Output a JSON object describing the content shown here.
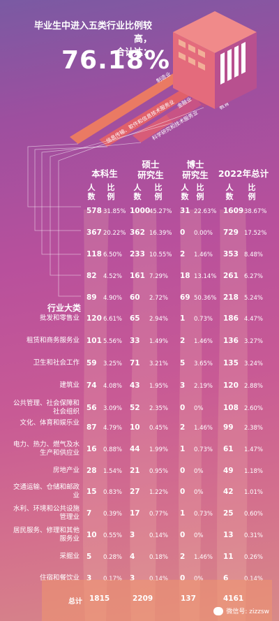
{
  "headline": {
    "line1": "毕业生中进入五类行业比例较高，",
    "line2": "合计达：",
    "value": "76.18%"
  },
  "ribbon_labels": [
    "制造业",
    "信息传输、软件和信息技术服务业",
    "金融业",
    "科学研究和技术服务业",
    "教育"
  ],
  "columns": {
    "bachelor": "本科生",
    "master_l1": "硕士",
    "master_l2": "研究生",
    "phd_l1": "博士",
    "phd_l2": "研究生",
    "total": "2022年总计",
    "count_l1": "人",
    "count_l2": "数",
    "ratio_l1": "比",
    "ratio_l2": "例"
  },
  "section_title": "行业大类",
  "top_rows": [
    {
      "b": "578",
      "bp": "31.85%",
      "m": "1000",
      "mp": "45.27%",
      "d": "31",
      "dp": "22.63%",
      "t": "1609",
      "tp": "38.67%"
    },
    {
      "b": "367",
      "bp": "20.22%",
      "m": "362",
      "mp": "16.39%",
      "d": "0",
      "dp": "0.00%",
      "t": "729",
      "tp": "17.52%"
    },
    {
      "b": "118",
      "bp": "6.50%",
      "m": "233",
      "mp": "10.55%",
      "d": "2",
      "dp": "1.46%",
      "t": "353",
      "tp": "8.48%"
    },
    {
      "b": "82",
      "bp": "4.52%",
      "m": "161",
      "mp": "7.29%",
      "d": "18",
      "dp": "13.14%",
      "t": "261",
      "tp": "6.27%"
    },
    {
      "b": "89",
      "bp": "4.90%",
      "m": "60",
      "mp": "2.72%",
      "d": "69",
      "dp": "50.36%",
      "t": "218",
      "tp": "5.24%"
    }
  ],
  "rows": [
    {
      "name": "批发和零售业",
      "b": "120",
      "bp": "6.61%",
      "m": "65",
      "mp": "2.94%",
      "d": "1",
      "dp": "0.73%",
      "t": "186",
      "tp": "4.47%"
    },
    {
      "name": "租赁和商务服务业",
      "b": "101",
      "bp": "5.56%",
      "m": "33",
      "mp": "1.49%",
      "d": "2",
      "dp": "1.46%",
      "t": "136",
      "tp": "3.27%"
    },
    {
      "name": "卫生和社会工作",
      "b": "59",
      "bp": "3.25%",
      "m": "71",
      "mp": "3.21%",
      "d": "5",
      "dp": "3.65%",
      "t": "135",
      "tp": "3.24%"
    },
    {
      "name": "建筑业",
      "b": "74",
      "bp": "4.08%",
      "m": "43",
      "mp": "1.95%",
      "d": "3",
      "dp": "2.19%",
      "t": "120",
      "tp": "2.88%"
    },
    {
      "name": "公共管理、社会保障和社会组织",
      "b": "56",
      "bp": "3.09%",
      "m": "52",
      "mp": "2.35%",
      "d": "0",
      "dp": "0%",
      "t": "108",
      "tp": "2.60%"
    },
    {
      "name": "文化、体育和娱乐业",
      "b": "87",
      "bp": "4.79%",
      "m": "10",
      "mp": "0.45%",
      "d": "2",
      "dp": "1.46%",
      "t": "99",
      "tp": "2.38%"
    },
    {
      "name": "电力、热力、燃气及水生产和供应业",
      "b": "16",
      "bp": "0.88%",
      "m": "44",
      "mp": "1.99%",
      "d": "1",
      "dp": "0.73%",
      "t": "61",
      "tp": "1.47%"
    },
    {
      "name": "房地产业",
      "b": "28",
      "bp": "1.54%",
      "m": "21",
      "mp": "0.95%",
      "d": "0",
      "dp": "0%",
      "t": "49",
      "tp": "1.18%"
    },
    {
      "name": "交通运输、仓储和邮政业",
      "b": "15",
      "bp": "0.83%",
      "m": "27",
      "mp": "1.22%",
      "d": "0",
      "dp": "0%",
      "t": "42",
      "tp": "1.01%"
    },
    {
      "name": "水利、环境和公共设施管理业",
      "b": "7",
      "bp": "0.39%",
      "m": "17",
      "mp": "0.77%",
      "d": "1",
      "dp": "0.73%",
      "t": "25",
      "tp": "0.60%"
    },
    {
      "name": "居民服务、修理和其他服务业",
      "b": "10",
      "bp": "0.55%",
      "m": "3",
      "mp": "0.14%",
      "d": "0",
      "dp": "0%",
      "t": "13",
      "tp": "0.31%"
    },
    {
      "name": "采掘业",
      "b": "5",
      "bp": "0.28%",
      "m": "4",
      "mp": "0.18%",
      "d": "2",
      "dp": "1.46%",
      "t": "11",
      "tp": "0.26%"
    },
    {
      "name": "住宿和餐饮业",
      "b": "3",
      "bp": "0.17%",
      "m": "3",
      "mp": "0.14%",
      "d": "0",
      "dp": "0%",
      "t": "6",
      "tp": "0.14%"
    }
  ],
  "totals": {
    "label": "总计",
    "b": "1815",
    "m": "2209",
    "d": "137",
    "t": "4161"
  },
  "watermark": "微信号: zizzsw",
  "colors": {
    "accent": "#f4a27a",
    "band": "#f0966e"
  },
  "chart_data": {
    "type": "table",
    "title": "毕业生中进入五类行业比例较高，合计达：76.18%",
    "columns": [
      "本科生 人数",
      "本科生 比例",
      "硕士研究生 人数",
      "硕士研究生 比例",
      "博士研究生 人数",
      "博士研究生 比例",
      "2022年总计 人数",
      "2022年总计 比例"
    ],
    "rows": [
      {
        "industry": "制造业",
        "values": [
          578,
          31.85,
          1000,
          45.27,
          31,
          22.63,
          1609,
          38.67
        ]
      },
      {
        "industry": "信息传输、软件和信息技术服务业",
        "values": [
          367,
          20.22,
          362,
          16.39,
          0,
          0.0,
          729,
          17.52
        ]
      },
      {
        "industry": "金融业",
        "values": [
          118,
          6.5,
          233,
          10.55,
          2,
          1.46,
          353,
          8.48
        ]
      },
      {
        "industry": "科学研究和技术服务业",
        "values": [
          82,
          4.52,
          161,
          7.29,
          18,
          13.14,
          261,
          6.27
        ]
      },
      {
        "industry": "教育",
        "values": [
          89,
          4.9,
          60,
          2.72,
          69,
          50.36,
          218,
          5.24
        ]
      },
      {
        "industry": "批发和零售业",
        "values": [
          120,
          6.61,
          65,
          2.94,
          1,
          0.73,
          186,
          4.47
        ]
      },
      {
        "industry": "租赁和商务服务业",
        "values": [
          101,
          5.56,
          33,
          1.49,
          2,
          1.46,
          136,
          3.27
        ]
      },
      {
        "industry": "卫生和社会工作",
        "values": [
          59,
          3.25,
          71,
          3.21,
          5,
          3.65,
          135,
          3.24
        ]
      },
      {
        "industry": "建筑业",
        "values": [
          74,
          4.08,
          43,
          1.95,
          3,
          2.19,
          120,
          2.88
        ]
      },
      {
        "industry": "公共管理、社会保障和社会组织",
        "values": [
          56,
          3.09,
          52,
          2.35,
          0,
          0,
          108,
          2.6
        ]
      },
      {
        "industry": "文化、体育和娱乐业",
        "values": [
          87,
          4.79,
          10,
          0.45,
          2,
          1.46,
          99,
          2.38
        ]
      },
      {
        "industry": "电力、热力、燃气及水生产和供应业",
        "values": [
          16,
          0.88,
          44,
          1.99,
          1,
          0.73,
          61,
          1.47
        ]
      },
      {
        "industry": "房地产业",
        "values": [
          28,
          1.54,
          21,
          0.95,
          0,
          0,
          49,
          1.18
        ]
      },
      {
        "industry": "交通运输、仓储和邮政业",
        "values": [
          15,
          0.83,
          27,
          1.22,
          0,
          0,
          42,
          1.01
        ]
      },
      {
        "industry": "水利、环境和公共设施管理业",
        "values": [
          7,
          0.39,
          17,
          0.77,
          1,
          0.73,
          25,
          0.6
        ]
      },
      {
        "industry": "居民服务、修理和其他服务业",
        "values": [
          10,
          0.55,
          3,
          0.14,
          0,
          0,
          13,
          0.31
        ]
      },
      {
        "industry": "采掘业",
        "values": [
          5,
          0.28,
          4,
          0.18,
          2,
          1.46,
          11,
          0.26
        ]
      },
      {
        "industry": "住宿和餐饮业",
        "values": [
          3,
          0.17,
          3,
          0.14,
          0,
          0,
          6,
          0.14
        ]
      }
    ],
    "totals": {
      "本科生": 1815,
      "硕士研究生": 2209,
      "博士研究生": 137,
      "2022年总计": 4161
    }
  }
}
